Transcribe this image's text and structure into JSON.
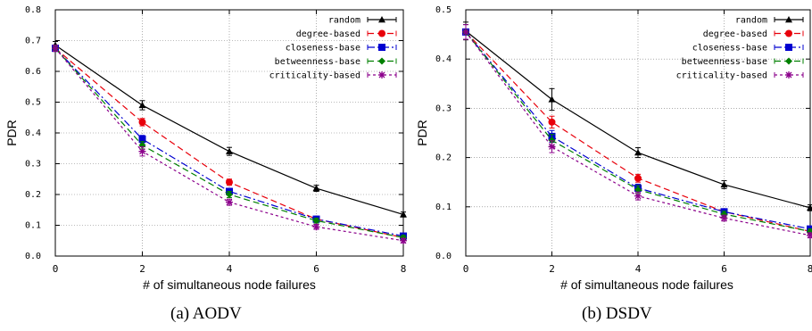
{
  "chart_data": [
    {
      "type": "line",
      "caption": "(a) AODV",
      "xlabel": "# of simultaneous node failures",
      "ylabel": "PDR",
      "x": [
        0,
        2,
        4,
        6,
        8
      ],
      "xticks": [
        0,
        2,
        4,
        6,
        8
      ],
      "ylim": [
        0,
        0.8
      ],
      "yticks": [
        0.0,
        0.1,
        0.2,
        0.3,
        0.4,
        0.5,
        0.6,
        0.7,
        0.8
      ],
      "grid": true,
      "legend_position": "top-right",
      "series": [
        {
          "name": "random",
          "color": "#000000",
          "dash": "solid",
          "marker": "triangle",
          "values": [
            0.685,
            0.49,
            0.34,
            0.22,
            0.135
          ],
          "err": [
            0.012,
            0.015,
            0.013,
            0.01,
            0.008
          ]
        },
        {
          "name": "degree-based",
          "color": "#e8000b",
          "dash": "dashed",
          "marker": "circle",
          "values": [
            0.675,
            0.435,
            0.24,
            0.12,
            0.06
          ],
          "err": [
            0.01,
            0.012,
            0.01,
            0.008,
            0.007
          ]
        },
        {
          "name": "closeness-base",
          "color": "#0000d0",
          "dash": "dashdot",
          "marker": "square",
          "values": [
            0.675,
            0.38,
            0.21,
            0.12,
            0.065
          ],
          "err": [
            0.01,
            0.012,
            0.01,
            0.008,
            0.007
          ]
        },
        {
          "name": "betweenness-base",
          "color": "#008000",
          "dash": "dashed",
          "marker": "diamond",
          "values": [
            0.675,
            0.36,
            0.2,
            0.115,
            0.06
          ],
          "err": [
            0.01,
            0.012,
            0.01,
            0.008,
            0.007
          ]
        },
        {
          "name": "criticality-based",
          "color": "#8b008b",
          "dash": "dotted",
          "marker": "star",
          "values": [
            0.675,
            0.34,
            0.175,
            0.095,
            0.05
          ],
          "err": [
            0.01,
            0.015,
            0.01,
            0.008,
            0.007
          ]
        }
      ]
    },
    {
      "type": "line",
      "caption": "(b) DSDV",
      "xlabel": "# of simultaneous node failures",
      "ylabel": "PDR",
      "x": [
        0,
        2,
        4,
        6,
        8
      ],
      "xticks": [
        0,
        2,
        4,
        6,
        8
      ],
      "ylim": [
        0,
        0.5
      ],
      "yticks": [
        0.0,
        0.1,
        0.2,
        0.3,
        0.4,
        0.5
      ],
      "grid": true,
      "legend_position": "top-right",
      "series": [
        {
          "name": "random",
          "color": "#000000",
          "dash": "solid",
          "marker": "triangle",
          "values": [
            0.457,
            0.318,
            0.21,
            0.145,
            0.098
          ],
          "err": [
            0.018,
            0.022,
            0.01,
            0.008,
            0.006
          ]
        },
        {
          "name": "degree-based",
          "color": "#e8000b",
          "dash": "dashed",
          "marker": "circle",
          "values": [
            0.455,
            0.272,
            0.158,
            0.09,
            0.05
          ],
          "err": [
            0.015,
            0.012,
            0.008,
            0.006,
            0.005
          ]
        },
        {
          "name": "closeness-base",
          "color": "#0000d0",
          "dash": "dashdot",
          "marker": "square",
          "values": [
            0.455,
            0.243,
            0.138,
            0.09,
            0.055
          ],
          "err": [
            0.015,
            0.012,
            0.008,
            0.006,
            0.005
          ]
        },
        {
          "name": "betweenness-base",
          "color": "#008000",
          "dash": "dashed",
          "marker": "diamond",
          "values": [
            0.455,
            0.235,
            0.135,
            0.085,
            0.05
          ],
          "err": [
            0.015,
            0.012,
            0.008,
            0.006,
            0.005
          ]
        },
        {
          "name": "criticality-based",
          "color": "#8b008b",
          "dash": "dotted",
          "marker": "star",
          "values": [
            0.455,
            0.222,
            0.122,
            0.077,
            0.042
          ],
          "err": [
            0.015,
            0.012,
            0.008,
            0.006,
            0.005
          ]
        }
      ]
    }
  ]
}
